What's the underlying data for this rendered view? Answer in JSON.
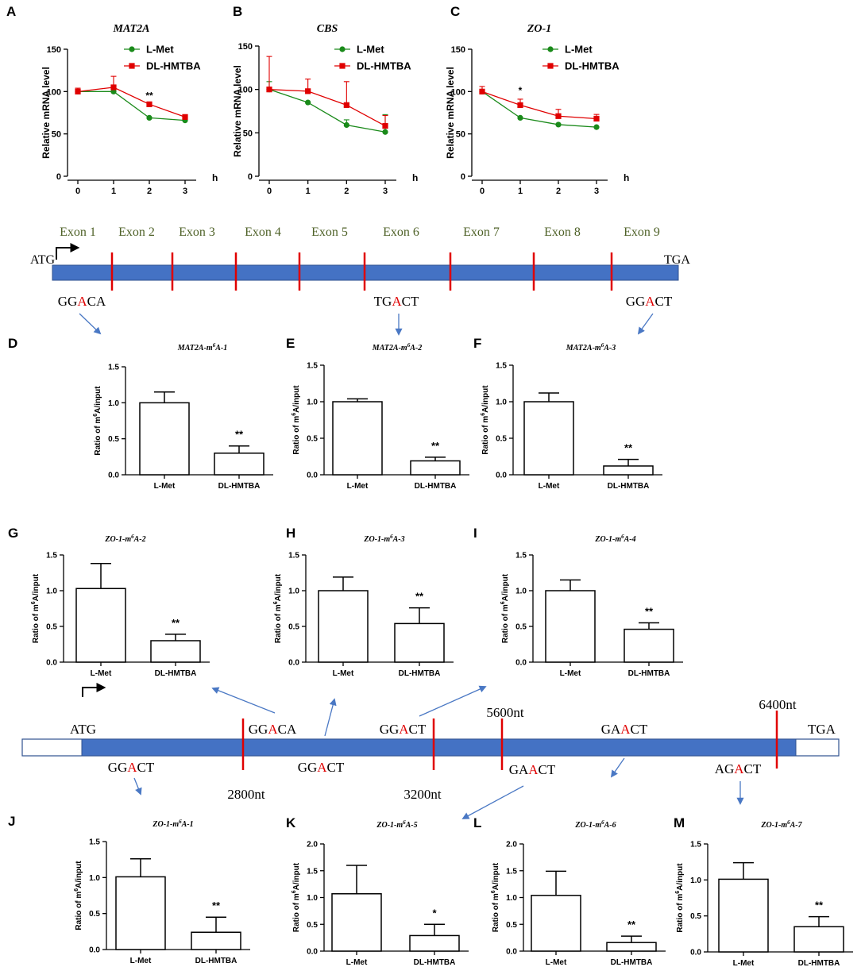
{
  "colors": {
    "lmet": "#1a8a1a",
    "hmtba": "#e00000",
    "gene_bar": "#4472c4",
    "exon_mark": "#e00000",
    "exon_text": "#4f6228",
    "arrow": "#4a78c4",
    "site_a": "#e00000"
  },
  "chart_data": [
    {
      "id": "A",
      "panel_label": "A",
      "type": "line",
      "title": "MAT2A",
      "xlabel": "h",
      "ylabel": "Relative mRNA level",
      "x": [
        0,
        1,
        2,
        3
      ],
      "xlim": [
        0,
        3
      ],
      "ylim": [
        0,
        150
      ],
      "yticks": [
        0,
        50,
        100,
        150
      ],
      "significance": [
        {
          "x": 2,
          "label": "**"
        }
      ],
      "series": [
        {
          "name": "L-Met",
          "values": [
            100,
            100,
            69,
            66
          ],
          "errors": [
            0,
            0,
            0,
            0
          ]
        },
        {
          "name": "DL-HMTBA",
          "values": [
            100,
            105,
            85,
            70
          ],
          "errors": [
            4,
            13,
            0,
            0
          ]
        }
      ]
    },
    {
      "id": "B",
      "panel_label": "B",
      "type": "line",
      "title": "CBS",
      "xlabel": "h",
      "ylabel": "Relative mRNA level",
      "x": [
        0,
        1,
        2,
        3
      ],
      "xlim": [
        0,
        3
      ],
      "ylim": [
        0,
        150
      ],
      "yticks": [
        0,
        50,
        100,
        150
      ],
      "significance": [],
      "series": [
        {
          "name": "L-Met",
          "values": [
            100,
            85,
            59,
            51
          ],
          "errors": [
            9,
            0,
            6,
            20
          ]
        },
        {
          "name": "DL-HMTBA",
          "values": [
            100,
            98,
            82,
            58
          ],
          "errors": [
            38,
            14,
            27,
            12
          ]
        }
      ]
    },
    {
      "id": "C",
      "panel_label": "C",
      "type": "line",
      "title": "ZO-1",
      "xlabel": "h",
      "ylabel": "Relative mRNA level",
      "x": [
        0,
        1,
        2,
        3
      ],
      "xlim": [
        0,
        3
      ],
      "ylim": [
        0,
        150
      ],
      "yticks": [
        0,
        50,
        100,
        150
      ],
      "significance": [
        {
          "x": 1,
          "label": "*"
        }
      ],
      "series": [
        {
          "name": "L-Met",
          "values": [
            100,
            69,
            61,
            58
          ],
          "errors": [
            0,
            0,
            0,
            0
          ]
        },
        {
          "name": "DL-HMTBA",
          "values": [
            100,
            84,
            71,
            68
          ],
          "errors": [
            6,
            7,
            8,
            5
          ]
        }
      ]
    },
    {
      "id": "D",
      "panel_label": "D",
      "type": "bar",
      "title_main": "MAT2A-m",
      "title_sup": "6",
      "title_end": "A-1",
      "ylabel_pre": "Ratio of m",
      "ylabel_sup": "6",
      "ylabel_post": "A/input",
      "categories": [
        "L-Met",
        "DL-HMTBA"
      ],
      "values": [
        1.0,
        0.3
      ],
      "errors": [
        0.15,
        0.1
      ],
      "ylim": [
        0,
        1.5
      ],
      "yticks": [
        "0.0",
        "0.5",
        "1.0",
        "1.5"
      ],
      "significance": "**"
    },
    {
      "id": "E",
      "panel_label": "E",
      "type": "bar",
      "title_main": "MAT2A-m",
      "title_sup": "6",
      "title_end": "A-2",
      "ylabel_pre": "Ratio of m",
      "ylabel_sup": "6",
      "ylabel_post": "A/input",
      "categories": [
        "L-Met",
        "DL-HMTBA"
      ],
      "values": [
        1.0,
        0.19
      ],
      "errors": [
        0.04,
        0.05
      ],
      "ylim": [
        0,
        1.5
      ],
      "yticks": [
        "0.0",
        "0.5",
        "1.0",
        "1.5"
      ],
      "significance": "**"
    },
    {
      "id": "F",
      "panel_label": "F",
      "type": "bar",
      "title_main": "MAT2A-m",
      "title_sup": "6",
      "title_end": "A-3",
      "ylabel_pre": "Ratio of m",
      "ylabel_sup": "6",
      "ylabel_post": "A/input",
      "categories": [
        "L-Met",
        "DL-HMTBA"
      ],
      "values": [
        1.0,
        0.12
      ],
      "errors": [
        0.12,
        0.09
      ],
      "ylim": [
        0,
        1.5
      ],
      "yticks": [
        "0.0",
        "0.5",
        "1.0",
        "1.5"
      ],
      "significance": "**"
    },
    {
      "id": "G",
      "panel_label": "G",
      "type": "bar",
      "title_main": "ZO-1-m",
      "title_sup": "6",
      "title_end": "A-2",
      "ylabel_pre": "Ratio of m",
      "ylabel_sup": "6",
      "ylabel_post": "A/input",
      "categories": [
        "L-Met",
        "DL-HMTBA"
      ],
      "values": [
        1.03,
        0.3
      ],
      "errors": [
        0.35,
        0.09
      ],
      "ylim": [
        0,
        1.5
      ],
      "yticks": [
        "0.0",
        "0.5",
        "1.0",
        "1.5"
      ],
      "significance": "**"
    },
    {
      "id": "H",
      "panel_label": "H",
      "type": "bar",
      "title_main": "ZO-1-m",
      "title_sup": "6",
      "title_end": "A-3",
      "ylabel_pre": "Ratio of m",
      "ylabel_sup": "6",
      "ylabel_post": "A/input",
      "categories": [
        "L-Met",
        "DL-HMTBA"
      ],
      "values": [
        1.0,
        0.54
      ],
      "errors": [
        0.19,
        0.22
      ],
      "ylim": [
        0,
        1.5
      ],
      "yticks": [
        "0.0",
        "0.5",
        "1.0",
        "1.5"
      ],
      "significance": "**"
    },
    {
      "id": "I",
      "panel_label": "I",
      "type": "bar",
      "title_main": "ZO-1-m",
      "title_sup": "6",
      "title_end": "A-4",
      "ylabel_pre": "Ratio of m",
      "ylabel_sup": "6",
      "ylabel_post": "A/input",
      "categories": [
        "L-Met",
        "DL-HMTBA"
      ],
      "values": [
        1.0,
        0.46
      ],
      "errors": [
        0.15,
        0.09
      ],
      "ylim": [
        0,
        1.5
      ],
      "yticks": [
        "0.0",
        "0.5",
        "1.0",
        "1.5"
      ],
      "significance": "**"
    },
    {
      "id": "J",
      "panel_label": "J",
      "type": "bar",
      "title_main": "ZO-1-m",
      "title_sup": "6",
      "title_end": "A-1",
      "ylabel_pre": "Ratio of m",
      "ylabel_sup": "6",
      "ylabel_post": "A/input",
      "categories": [
        "L-Met",
        "DL-HMTBA"
      ],
      "values": [
        1.01,
        0.24
      ],
      "errors": [
        0.25,
        0.21
      ],
      "ylim": [
        0,
        1.5
      ],
      "yticks": [
        "0.0",
        "0.5",
        "1.0",
        "1.5"
      ],
      "significance": "**"
    },
    {
      "id": "K",
      "panel_label": "K",
      "type": "bar",
      "title_main": "ZO-1-m",
      "title_sup": "6",
      "title_end": "A-5",
      "ylabel_pre": "Ratio of m",
      "ylabel_sup": "6",
      "ylabel_post": "A/input",
      "categories": [
        "L-Met",
        "DL-HMTBA"
      ],
      "values": [
        1.07,
        0.29
      ],
      "errors": [
        0.53,
        0.21
      ],
      "ylim": [
        0,
        2.0
      ],
      "yticks": [
        "0.0",
        "0.5",
        "1.0",
        "1.5",
        "2.0"
      ],
      "significance": "*"
    },
    {
      "id": "L",
      "panel_label": "L",
      "type": "bar",
      "title_main": "ZO-1-m",
      "title_sup": "6",
      "title_end": "A-6",
      "ylabel_pre": "Ratio of m",
      "ylabel_sup": "6",
      "ylabel_post": "A/input",
      "categories": [
        "L-Met",
        "DL-HMTBA"
      ],
      "values": [
        1.04,
        0.16
      ],
      "errors": [
        0.45,
        0.12
      ],
      "ylim": [
        0,
        2.0
      ],
      "yticks": [
        "0.0",
        "0.5",
        "1.0",
        "1.5",
        "2.0"
      ],
      "significance": "**"
    },
    {
      "id": "M",
      "panel_label": "M",
      "type": "bar",
      "title_main": "ZO-1-m",
      "title_sup": "6",
      "title_end": "A-7",
      "ylabel_pre": "Ratio of m",
      "ylabel_sup": "6",
      "ylabel_post": "A/input",
      "categories": [
        "L-Met",
        "DL-HMTBA"
      ],
      "values": [
        1.01,
        0.35
      ],
      "errors": [
        0.23,
        0.14
      ],
      "ylim": [
        0,
        1.5
      ],
      "yticks": [
        "0.0",
        "0.5",
        "1.0",
        "1.5"
      ],
      "significance": "**"
    }
  ],
  "mat2a_diagram": {
    "exons": [
      "Exon 1",
      "Exon 2",
      "Exon 3",
      "Exon 4",
      "Exon 5",
      "Exon 6",
      "Exon 7",
      "Exon 8",
      "Exon 9"
    ],
    "start_codon": "ATG",
    "stop_codon": "TGA",
    "sites": [
      {
        "pre": "GG",
        "a": "A",
        "post": "CA"
      },
      {
        "pre": "TG",
        "a": "A",
        "post": "CT"
      },
      {
        "pre": "GG",
        "a": "A",
        "post": "CT"
      }
    ]
  },
  "zo1_diagram": {
    "start_codon": "ATG",
    "stop_codon": "TGA",
    "positions": [
      "2800nt",
      "3200nt",
      "5600nt",
      "6400nt"
    ],
    "sites": [
      {
        "pre": "GG",
        "a": "A",
        "post": "CA"
      },
      {
        "pre": "GG",
        "a": "A",
        "post": "CT"
      },
      {
        "pre": "GG",
        "a": "A",
        "post": "CT"
      },
      {
        "pre": "GG",
        "a": "A",
        "post": "CT"
      },
      {
        "pre": "GA",
        "a": "A",
        "post": "CT"
      },
      {
        "pre": "GA",
        "a": "A",
        "post": "CT"
      },
      {
        "pre": "AG",
        "a": "A",
        "post": "CT"
      }
    ]
  }
}
